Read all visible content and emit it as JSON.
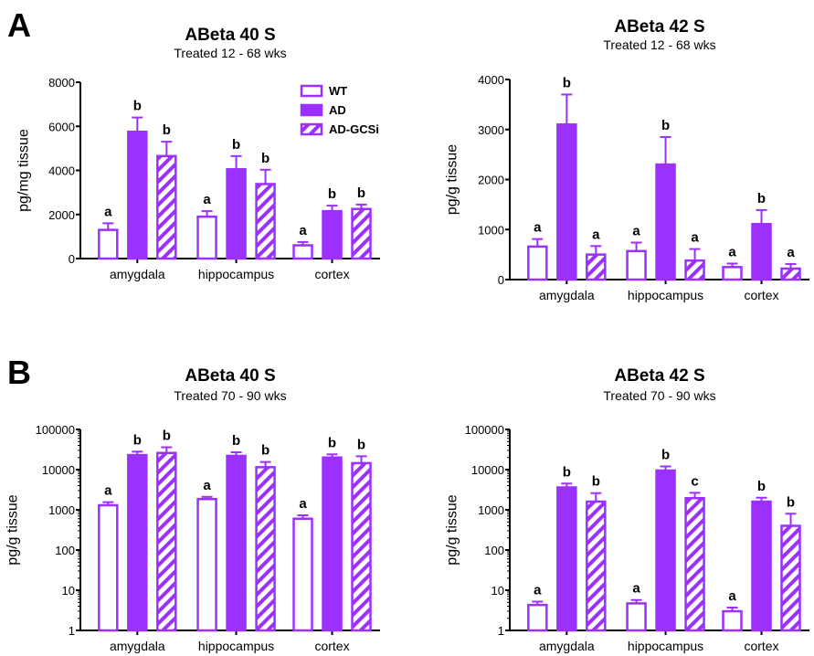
{
  "panel_labels": [
    "A",
    "B"
  ],
  "legend": {
    "entries": [
      {
        "label": "WT",
        "fill": "outline"
      },
      {
        "label": "AD",
        "fill": "solid"
      },
      {
        "label": "AD-GCSi",
        "fill": "hatched"
      }
    ]
  },
  "colors": {
    "accent": "#9b30ff",
    "axis": "#000000"
  },
  "chart_data": [
    {
      "type": "bar",
      "title": "ABeta 40 S",
      "subtitle": "Treated 12 - 68 wks",
      "ylabel": "pg/mg tissue",
      "yscale": "linear",
      "ylim": [
        0,
        8000
      ],
      "yticks": [
        "0",
        "2000",
        "4000",
        "6000",
        "8000"
      ],
      "categories": [
        "amygdala",
        "hippocampus",
        "cortex"
      ],
      "series": [
        {
          "name": "WT",
          "values": [
            1300,
            1900,
            600
          ],
          "errors": [
            300,
            250,
            150
          ],
          "letters": [
            "a",
            "a",
            "a"
          ]
        },
        {
          "name": "AD",
          "values": [
            5750,
            4050,
            2150
          ],
          "errors": [
            650,
            600,
            250
          ],
          "letters": [
            "b",
            "b",
            "b"
          ]
        },
        {
          "name": "AD-GCSi",
          "values": [
            4650,
            3380,
            2250
          ],
          "errors": [
            650,
            650,
            200
          ],
          "letters": [
            "b",
            "b",
            "b"
          ]
        }
      ]
    },
    {
      "type": "bar",
      "title": "ABeta 42 S",
      "subtitle": "Treated 12 - 68 wks",
      "ylabel": "pg/g tissue",
      "yscale": "linear",
      "ylim": [
        0,
        4000
      ],
      "yticks": [
        "0",
        "1000",
        "2000",
        "3000",
        "4000"
      ],
      "categories": [
        "amygdala",
        "hippocampus",
        "cortex"
      ],
      "series": [
        {
          "name": "WT",
          "values": [
            660,
            570,
            250
          ],
          "errors": [
            150,
            170,
            70
          ],
          "letters": [
            "a",
            "a",
            "a"
          ]
        },
        {
          "name": "AD",
          "values": [
            3100,
            2300,
            1110
          ],
          "errors": [
            600,
            550,
            280
          ],
          "letters": [
            "b",
            "b",
            "b"
          ]
        },
        {
          "name": "AD-GCSi",
          "values": [
            500,
            380,
            220
          ],
          "errors": [
            170,
            230,
            90
          ],
          "letters": [
            "a",
            "a",
            "a"
          ]
        }
      ]
    },
    {
      "type": "bar",
      "title": "ABeta 40 S",
      "subtitle": "Treated 70 - 90 wks",
      "ylabel": "pg/g tissue",
      "yscale": "log",
      "ylim": [
        1,
        100000
      ],
      "yticks": [
        "1",
        "10",
        "100",
        "1000",
        "10000",
        "100000"
      ],
      "categories": [
        "amygdala",
        "hippocampus",
        "cortex"
      ],
      "series": [
        {
          "name": "WT",
          "values": [
            1300,
            1850,
            600
          ],
          "errors": [
            250,
            250,
            130
          ],
          "letters": [
            "a",
            "a",
            "a"
          ]
        },
        {
          "name": "AD",
          "values": [
            23000,
            22000,
            20000
          ],
          "errors": [
            5000,
            5000,
            4000
          ],
          "letters": [
            "b",
            "b",
            "b"
          ]
        },
        {
          "name": "AD-GCSi",
          "values": [
            26000,
            11500,
            14500
          ],
          "errors": [
            10000,
            4000,
            7000
          ],
          "letters": [
            "b",
            "b",
            "b"
          ]
        }
      ]
    },
    {
      "type": "bar",
      "title": "ABeta 42 S",
      "subtitle": "Treated 70 - 90 wks",
      "ylabel": "pg/g tissue",
      "yscale": "log",
      "ylim": [
        1,
        100000
      ],
      "yticks": [
        "1",
        "10",
        "100",
        "1000",
        "10000",
        "100000"
      ],
      "categories": [
        "amygdala",
        "hippocampus",
        "cortex"
      ],
      "series": [
        {
          "name": "WT",
          "values": [
            4.3,
            4.7,
            3.0
          ],
          "errors": [
            0.9,
            1.0,
            0.7
          ],
          "letters": [
            "a",
            "a",
            "a"
          ]
        },
        {
          "name": "AD",
          "values": [
            3600,
            9500,
            1600
          ],
          "errors": [
            900,
            2500,
            400
          ],
          "letters": [
            "b",
            "b",
            "b"
          ]
        },
        {
          "name": "AD-GCSi",
          "values": [
            1600,
            1950,
            400
          ],
          "errors": [
            1000,
            700,
            400
          ],
          "letters": [
            "b",
            "c",
            "b"
          ]
        }
      ]
    }
  ]
}
